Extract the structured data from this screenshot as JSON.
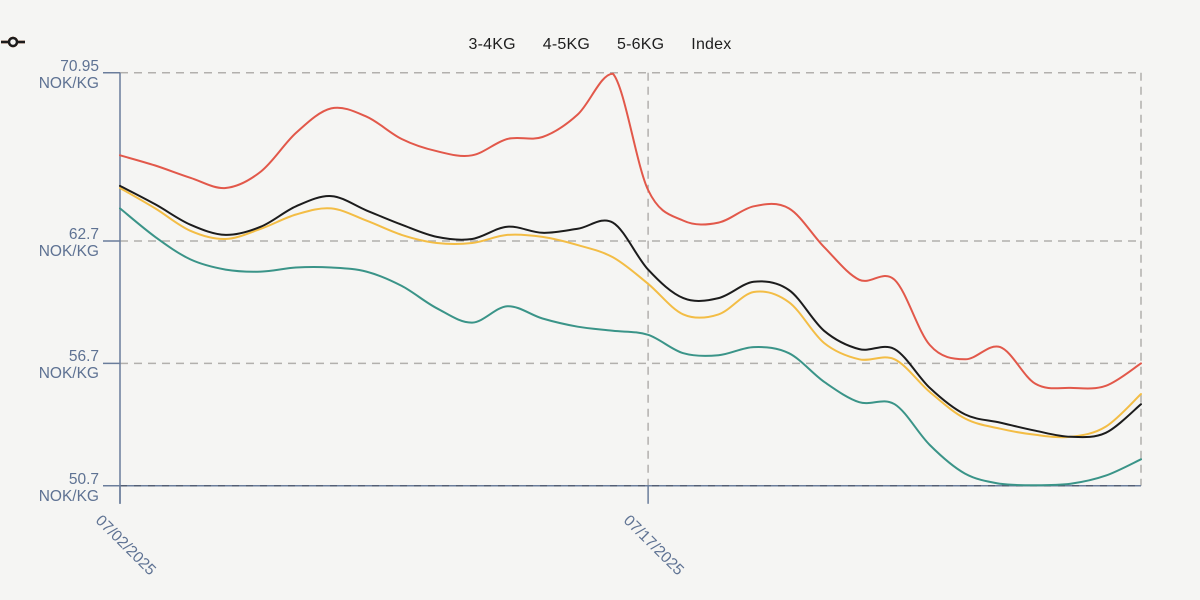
{
  "colors": {
    "background": "#f5f5f3",
    "axis_label": "#5e7293",
    "axis_line": "#6a7d9b",
    "grid_dash": "#b2b0ad",
    "bottom_dash": "#4a5568",
    "legend_text": "#1e1e1e"
  },
  "legend": {
    "items": [
      {
        "label": "3-4KG",
        "color": "#3a9488"
      },
      {
        "label": "4-5KG",
        "color": "#f3bd45"
      },
      {
        "label": "5-6KG",
        "color": "#e2584a"
      },
      {
        "label": "Index",
        "color": "#1c1c1c"
      }
    ]
  },
  "y_axis": {
    "unit_label": "NOK/KG",
    "tick_labels": [
      "70.95",
      "62.7",
      "56.7",
      "50.7"
    ]
  },
  "x_axis": {
    "tick_labels": [
      "07/02/2025",
      "07/17/2025"
    ],
    "tick_indices": [
      0,
      15
    ]
  },
  "chart_data": {
    "type": "line",
    "title": "",
    "xlabel": "",
    "ylabel": "NOK/KG",
    "ylim": [
      50.7,
      70.95
    ],
    "y_ticks": [
      70.95,
      62.7,
      56.7,
      50.7
    ],
    "grid": "dashed",
    "legend_position": "top-center",
    "x": [
      "07/02/2025",
      "07/03/2025",
      "07/04/2025",
      "07/05/2025",
      "07/06/2025",
      "07/07/2025",
      "07/08/2025",
      "07/09/2025",
      "07/10/2025",
      "07/11/2025",
      "07/12/2025",
      "07/13/2025",
      "07/14/2025",
      "07/15/2025",
      "07/16/2025",
      "07/17/2025",
      "07/18/2025",
      "07/19/2025",
      "07/20/2025",
      "07/21/2025",
      "07/22/2025",
      "07/23/2025",
      "07/24/2025",
      "07/25/2025",
      "07/26/2025",
      "07/27/2025",
      "07/28/2025",
      "07/29/2025",
      "07/30/2025",
      "07/31/2025"
    ],
    "series": [
      {
        "name": "3-4KG",
        "color": "#3a9488",
        "values": [
          64.3,
          62.9,
          61.8,
          61.3,
          61.2,
          61.4,
          61.4,
          61.2,
          60.5,
          59.4,
          58.7,
          59.5,
          58.9,
          58.5,
          58.3,
          58.1,
          57.2,
          57.1,
          57.5,
          57.2,
          55.8,
          54.8,
          54.7,
          52.7,
          51.3,
          50.8,
          50.7,
          50.8,
          51.2,
          52.0
        ]
      },
      {
        "name": "4-5KG",
        "color": "#f3bd45",
        "values": [
          65.3,
          64.3,
          63.2,
          62.8,
          63.3,
          64.0,
          64.3,
          63.7,
          63.0,
          62.6,
          62.6,
          63.0,
          62.9,
          62.5,
          61.9,
          60.6,
          59.1,
          59.1,
          60.2,
          59.7,
          57.7,
          56.9,
          56.9,
          55.3,
          54.0,
          53.5,
          53.2,
          53.1,
          53.6,
          55.2
        ]
      },
      {
        "name": "5-6KG",
        "color": "#e2584a",
        "values": [
          66.9,
          66.4,
          65.8,
          65.3,
          66.1,
          68.0,
          69.2,
          68.8,
          67.7,
          67.1,
          66.9,
          67.7,
          67.8,
          68.9,
          70.9,
          65.2,
          63.7,
          63.6,
          64.4,
          64.3,
          62.4,
          60.8,
          60.8,
          57.6,
          56.9,
          57.5,
          55.7,
          55.5,
          55.6,
          56.7
        ]
      },
      {
        "name": "Index",
        "color": "#1c1c1c",
        "values": [
          65.4,
          64.5,
          63.5,
          63.0,
          63.4,
          64.4,
          64.9,
          64.2,
          63.5,
          62.9,
          62.8,
          63.4,
          63.1,
          63.3,
          63.6,
          61.3,
          59.9,
          59.9,
          60.7,
          60.3,
          58.3,
          57.4,
          57.4,
          55.5,
          54.2,
          53.8,
          53.4,
          53.1,
          53.3,
          54.7
        ]
      }
    ]
  }
}
